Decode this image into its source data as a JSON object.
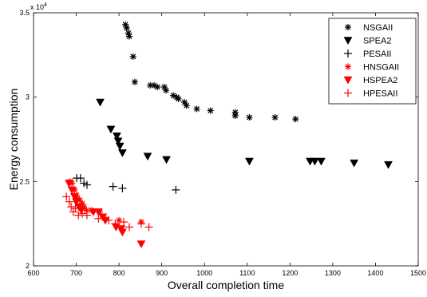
{
  "chart_data": {
    "type": "scatter",
    "title": "",
    "xlabel": "Overall completion time",
    "ylabel": "Energy consumption",
    "y_multiplier_label": "x 10",
    "y_multiplier_exp": "4",
    "xlim": [
      600,
      1500
    ],
    "ylim": [
      2.0,
      3.5
    ],
    "xticks": [
      "600",
      "700",
      "800",
      "900",
      "1000",
      "1100",
      "1200",
      "1300",
      "1400",
      "1500"
    ],
    "yticks": [
      "2",
      "2.5",
      "3",
      "3.5"
    ],
    "grid": false,
    "legend_position": "top-right",
    "series": [
      {
        "name": "NSGAII",
        "marker": "star",
        "color": "#000000",
        "points": [
          [
            815,
            3.43
          ],
          [
            818,
            3.41
          ],
          [
            822,
            3.38
          ],
          [
            824,
            3.36
          ],
          [
            833,
            3.24
          ],
          [
            837,
            3.09
          ],
          [
            873,
            3.07
          ],
          [
            882,
            3.07
          ],
          [
            890,
            3.06
          ],
          [
            906,
            3.06
          ],
          [
            910,
            3.04
          ],
          [
            927,
            3.01
          ],
          [
            935,
            3.0
          ],
          [
            939,
            2.99
          ],
          [
            953,
            2.97
          ],
          [
            958,
            2.95
          ],
          [
            982,
            2.93
          ],
          [
            1014,
            2.92
          ],
          [
            1072,
            2.91
          ],
          [
            1072,
            2.89
          ],
          [
            1105,
            2.88
          ],
          [
            1165,
            2.88
          ],
          [
            1213,
            2.87
          ]
        ]
      },
      {
        "name": "SPEA2",
        "marker": "triangle-down",
        "color": "#000000",
        "points": [
          [
            756,
            2.97
          ],
          [
            781,
            2.81
          ],
          [
            795,
            2.77
          ],
          [
            798,
            2.74
          ],
          [
            802,
            2.71
          ],
          [
            808,
            2.67
          ],
          [
            867,
            2.65
          ],
          [
            911,
            2.63
          ],
          [
            1105,
            2.62
          ],
          [
            1247,
            2.62
          ],
          [
            1258,
            2.62
          ],
          [
            1273,
            2.62
          ],
          [
            1350,
            2.61
          ],
          [
            1430,
            2.6
          ]
        ]
      },
      {
        "name": "PESAII",
        "marker": "plus",
        "color": "#000000",
        "points": [
          [
            701,
            2.52
          ],
          [
            710,
            2.52
          ],
          [
            718,
            2.49
          ],
          [
            725,
            2.48
          ],
          [
            786,
            2.47
          ],
          [
            808,
            2.46
          ],
          [
            933,
            2.45
          ]
        ]
      },
      {
        "name": "HNSGAII",
        "marker": "star",
        "color": "#ff0000",
        "points": [
          [
            686,
            2.5
          ],
          [
            690,
            2.49
          ],
          [
            696,
            2.45
          ],
          [
            700,
            2.42
          ],
          [
            703,
            2.4
          ],
          [
            708,
            2.39
          ],
          [
            714,
            2.37
          ],
          [
            718,
            2.35
          ],
          [
            724,
            2.33
          ],
          [
            735,
            2.33
          ],
          [
            755,
            2.32
          ],
          [
            762,
            2.29
          ],
          [
            800,
            2.27
          ],
          [
            852,
            2.26
          ]
        ]
      },
      {
        "name": "HSPEA2",
        "marker": "triangle-down",
        "color": "#ff0000",
        "points": [
          [
            683,
            2.49
          ],
          [
            690,
            2.45
          ],
          [
            696,
            2.41
          ],
          [
            700,
            2.38
          ],
          [
            706,
            2.35
          ],
          [
            712,
            2.33
          ],
          [
            740,
            2.32
          ],
          [
            752,
            2.32
          ],
          [
            762,
            2.29
          ],
          [
            768,
            2.27
          ],
          [
            793,
            2.23
          ],
          [
            805,
            2.22
          ],
          [
            808,
            2.2
          ],
          [
            852,
            2.13
          ]
        ]
      },
      {
        "name": "HPESAII",
        "marker": "plus",
        "color": "#ff0000",
        "points": [
          [
            677,
            2.41
          ],
          [
            684,
            2.38
          ],
          [
            688,
            2.35
          ],
          [
            693,
            2.32
          ],
          [
            698,
            2.34
          ],
          [
            705,
            2.3
          ],
          [
            714,
            2.31
          ],
          [
            725,
            2.3
          ],
          [
            752,
            2.28
          ],
          [
            776,
            2.27
          ],
          [
            791,
            2.25
          ],
          [
            811,
            2.26
          ],
          [
            824,
            2.23
          ],
          [
            852,
            2.25
          ],
          [
            870,
            2.23
          ]
        ]
      }
    ]
  }
}
